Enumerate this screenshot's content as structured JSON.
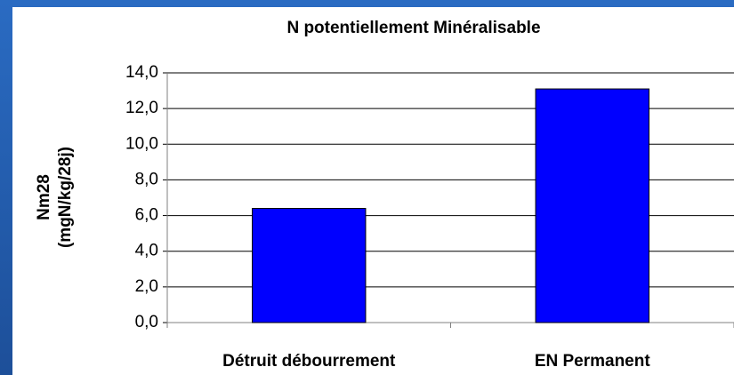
{
  "chart_data": {
    "type": "bar",
    "title": "N potentiellement Minéralisable",
    "y_label": [
      "Nm28",
      "(mgN/kg/28j)"
    ],
    "categories": [
      "Détruit débourrement",
      "EN Permanent"
    ],
    "values": [
      6.4,
      13.1
    ],
    "color": "#0000ff",
    "ylim": [
      0,
      14
    ],
    "yticks": [
      {
        "value": 0,
        "label": "0,0"
      },
      {
        "value": 2,
        "label": "2,0"
      },
      {
        "value": 4,
        "label": "4,0"
      },
      {
        "value": 6,
        "label": "6,0"
      },
      {
        "value": 8,
        "label": "8,0"
      },
      {
        "value": 10,
        "label": "10,0"
      },
      {
        "value": 12,
        "label": "12,0"
      },
      {
        "value": 14,
        "label": "14,0"
      }
    ],
    "grid": true
  }
}
